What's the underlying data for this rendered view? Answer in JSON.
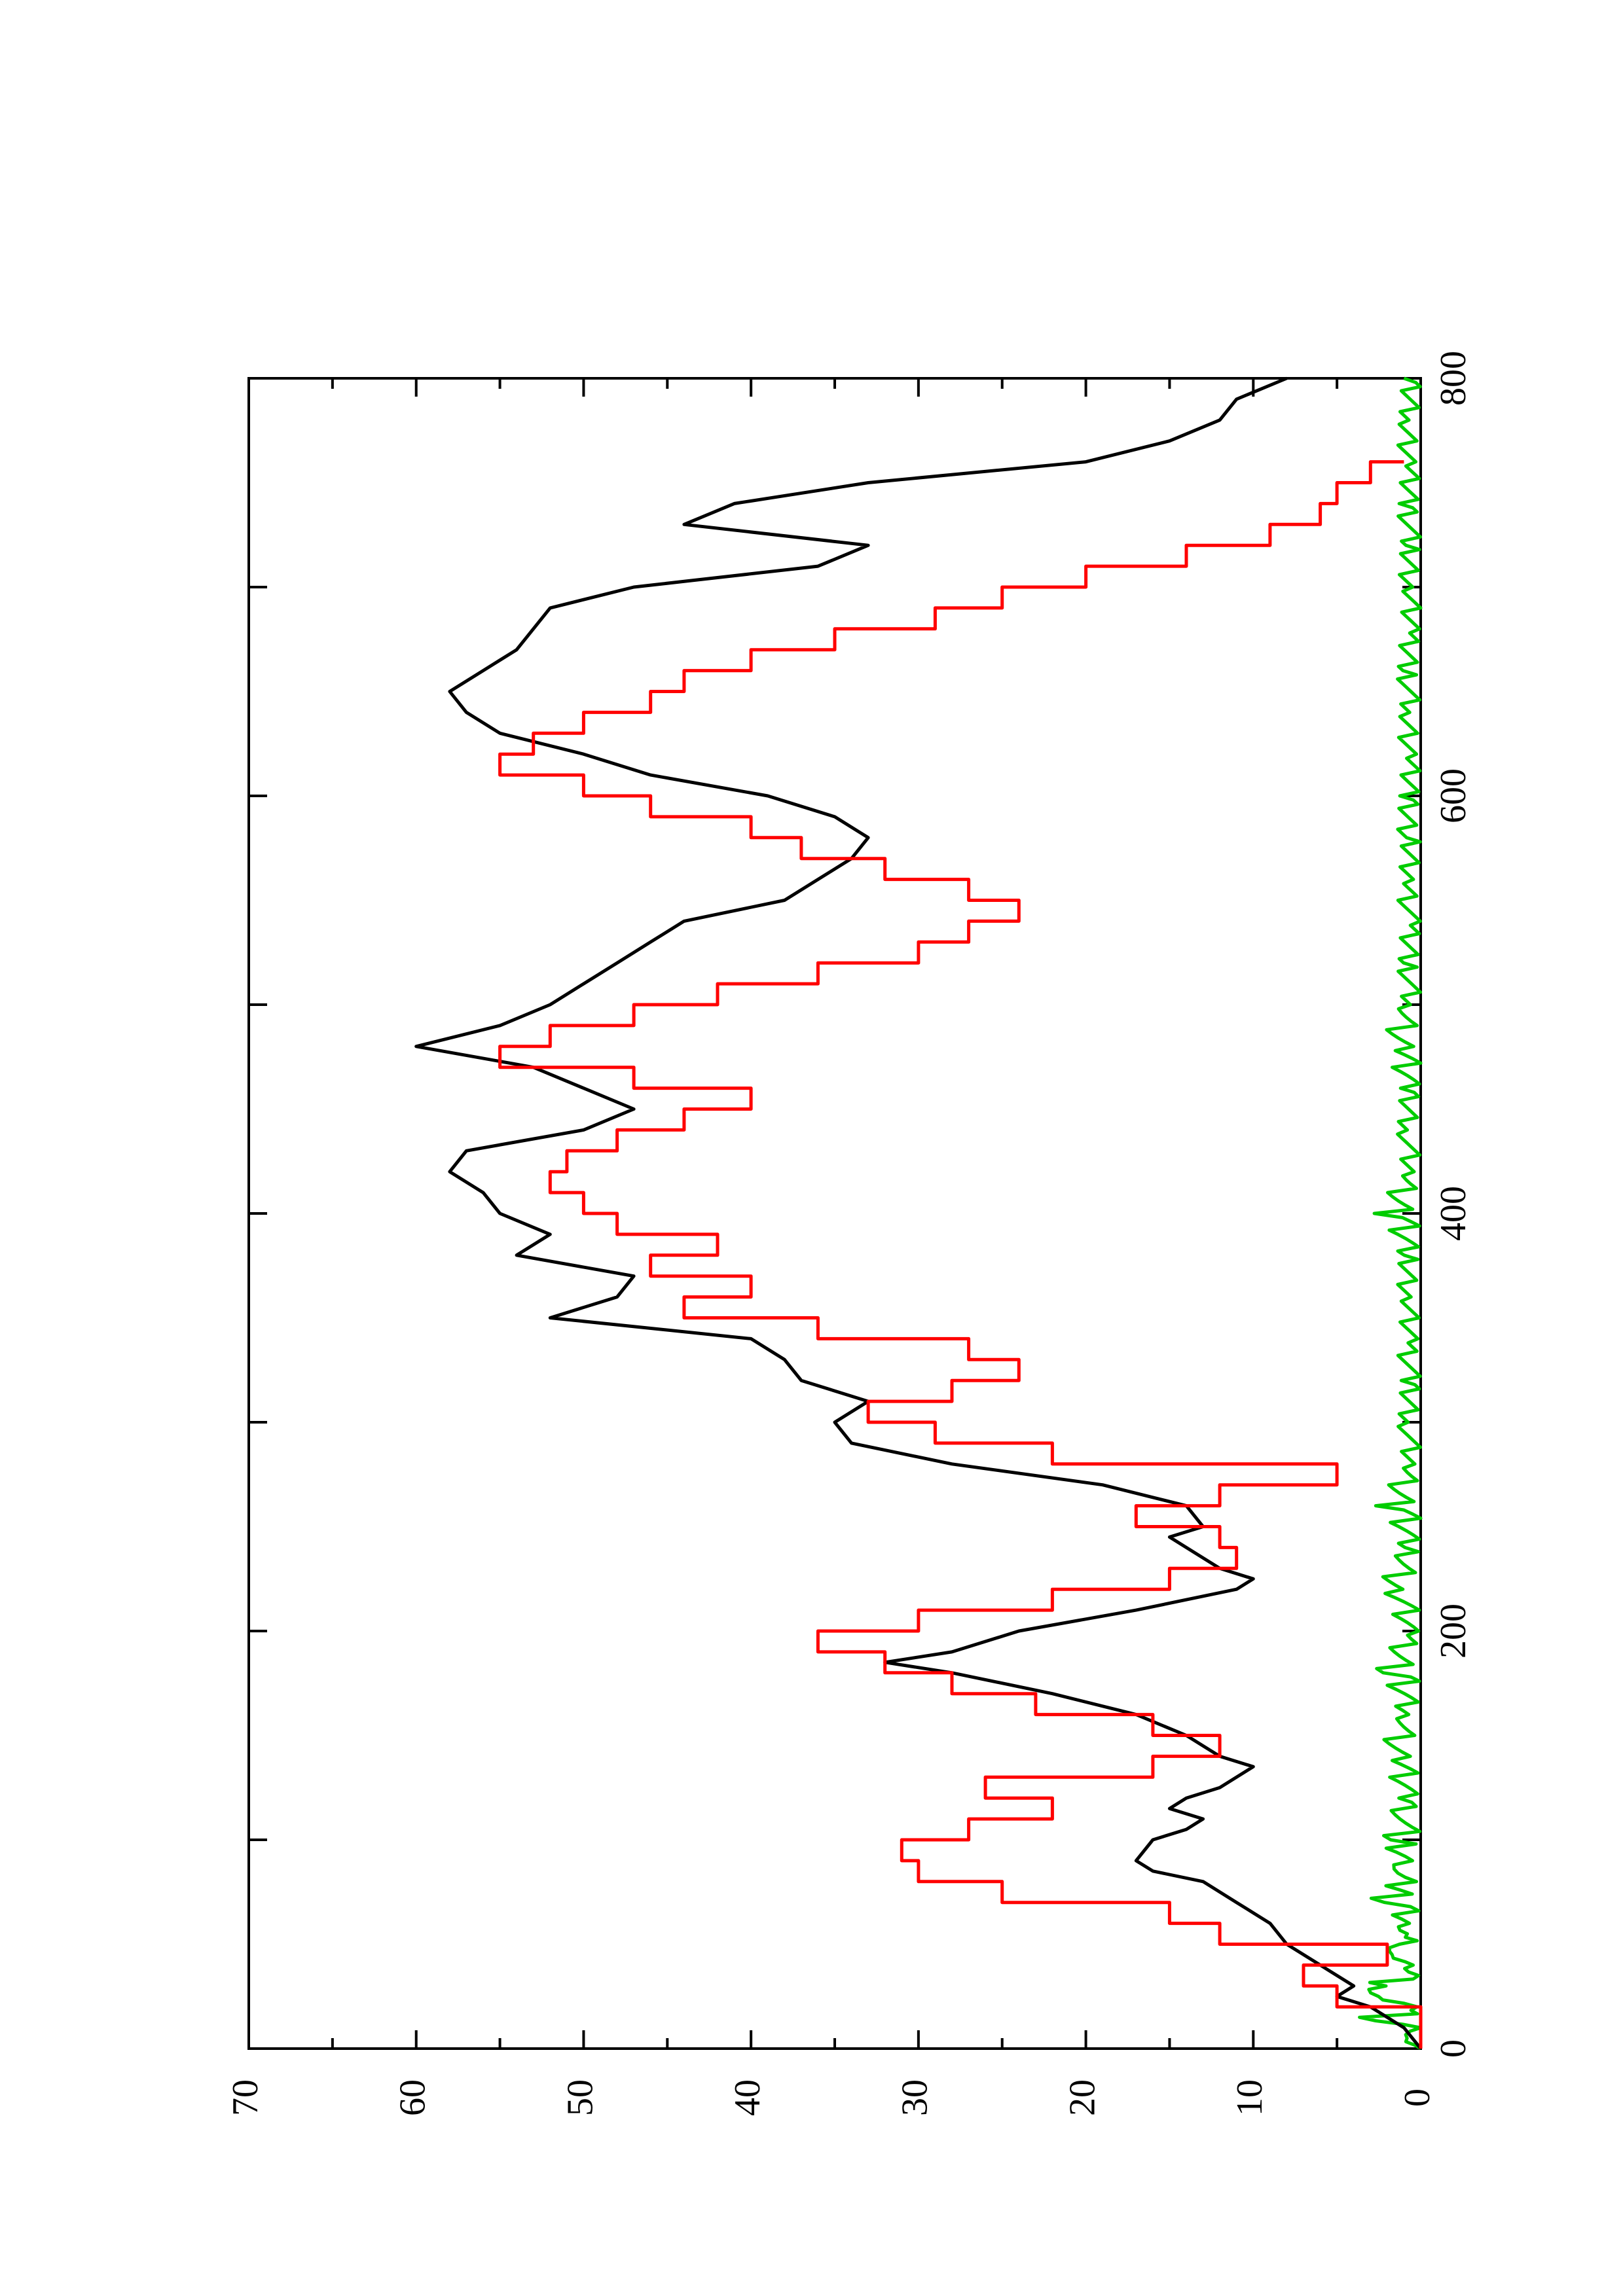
{
  "chart_data": {
    "type": "line",
    "orientation": "rotated 90 degrees counter-clockwise (x axis runs bottom-to-top, y axis runs left-to-right)",
    "title": "",
    "xlabel": "",
    "ylabel": "",
    "xlim": [
      0,
      800
    ],
    "ylim": [
      0,
      70
    ],
    "x_ticks": [
      "0",
      "200",
      "400",
      "600",
      "800"
    ],
    "y_ticks": [
      "0",
      "10",
      "20",
      "30",
      "40",
      "50",
      "60",
      "70"
    ],
    "grid": false,
    "legend": "none",
    "series": [
      {
        "color": "#000000",
        "style": "line",
        "points": [
          [
            0,
            0
          ],
          [
            10,
            1
          ],
          [
            20,
            3
          ],
          [
            25,
            5
          ],
          [
            30,
            4
          ],
          [
            40,
            6
          ],
          [
            50,
            8
          ],
          [
            60,
            9
          ],
          [
            70,
            11
          ],
          [
            80,
            13
          ],
          [
            85,
            16
          ],
          [
            90,
            17
          ],
          [
            100,
            16
          ],
          [
            105,
            14
          ],
          [
            110,
            13
          ],
          [
            115,
            15
          ],
          [
            120,
            14
          ],
          [
            125,
            12
          ],
          [
            130,
            11
          ],
          [
            135,
            10
          ],
          [
            140,
            12
          ],
          [
            150,
            14
          ],
          [
            160,
            17
          ],
          [
            170,
            22
          ],
          [
            180,
            28
          ],
          [
            185,
            32
          ],
          [
            190,
            28
          ],
          [
            200,
            24
          ],
          [
            210,
            17
          ],
          [
            220,
            11
          ],
          [
            225,
            10
          ],
          [
            230,
            12
          ],
          [
            240,
            14
          ],
          [
            245,
            15
          ],
          [
            250,
            13
          ],
          [
            260,
            14
          ],
          [
            270,
            19
          ],
          [
            280,
            28
          ],
          [
            290,
            34
          ],
          [
            300,
            35
          ],
          [
            310,
            33
          ],
          [
            320,
            37
          ],
          [
            330,
            38
          ],
          [
            340,
            40
          ],
          [
            350,
            52
          ],
          [
            360,
            48
          ],
          [
            370,
            47
          ],
          [
            380,
            54
          ],
          [
            390,
            52
          ],
          [
            400,
            55
          ],
          [
            410,
            56
          ],
          [
            420,
            58
          ],
          [
            430,
            57
          ],
          [
            440,
            50
          ],
          [
            450,
            47
          ],
          [
            460,
            50
          ],
          [
            470,
            53
          ],
          [
            480,
            60
          ],
          [
            490,
            55
          ],
          [
            500,
            52
          ],
          [
            510,
            50
          ],
          [
            520,
            48
          ],
          [
            530,
            46
          ],
          [
            540,
            44
          ],
          [
            550,
            38
          ],
          [
            560,
            36
          ],
          [
            570,
            34
          ],
          [
            580,
            33
          ],
          [
            590,
            35
          ],
          [
            600,
            39
          ],
          [
            610,
            46
          ],
          [
            620,
            50
          ],
          [
            630,
            55
          ],
          [
            640,
            57
          ],
          [
            650,
            58
          ],
          [
            660,
            56
          ],
          [
            670,
            54
          ],
          [
            680,
            53
          ],
          [
            690,
            52
          ],
          [
            700,
            47
          ],
          [
            710,
            36
          ],
          [
            720,
            33
          ],
          [
            730,
            44
          ],
          [
            740,
            41
          ],
          [
            750,
            33
          ],
          [
            760,
            20
          ],
          [
            770,
            15
          ],
          [
            780,
            12
          ],
          [
            790,
            11
          ],
          [
            800,
            8
          ]
        ]
      },
      {
        "color": "#ff0000",
        "style": "step",
        "points": [
          [
            0,
            0
          ],
          [
            20,
            5
          ],
          [
            30,
            7
          ],
          [
            40,
            2
          ],
          [
            50,
            12
          ],
          [
            60,
            15
          ],
          [
            70,
            25
          ],
          [
            80,
            30
          ],
          [
            90,
            31
          ],
          [
            100,
            27
          ],
          [
            110,
            22
          ],
          [
            120,
            26
          ],
          [
            130,
            16
          ],
          [
            140,
            12
          ],
          [
            150,
            16
          ],
          [
            160,
            23
          ],
          [
            170,
            28
          ],
          [
            180,
            32
          ],
          [
            190,
            36
          ],
          [
            200,
            30
          ],
          [
            210,
            22
          ],
          [
            220,
            15
          ],
          [
            230,
            11
          ],
          [
            240,
            12
          ],
          [
            250,
            17
          ],
          [
            260,
            12
          ],
          [
            270,
            5
          ],
          [
            280,
            22
          ],
          [
            290,
            29
          ],
          [
            300,
            33
          ],
          [
            310,
            28
          ],
          [
            320,
            24
          ],
          [
            330,
            27
          ],
          [
            340,
            36
          ],
          [
            350,
            44
          ],
          [
            360,
            40
          ],
          [
            370,
            46
          ],
          [
            380,
            42
          ],
          [
            390,
            48
          ],
          [
            400,
            50
          ],
          [
            410,
            52
          ],
          [
            420,
            51
          ],
          [
            430,
            48
          ],
          [
            440,
            44
          ],
          [
            450,
            40
          ],
          [
            460,
            47
          ],
          [
            470,
            55
          ],
          [
            480,
            52
          ],
          [
            490,
            47
          ],
          [
            500,
            42
          ],
          [
            510,
            36
          ],
          [
            520,
            30
          ],
          [
            530,
            27
          ],
          [
            540,
            24
          ],
          [
            550,
            27
          ],
          [
            560,
            32
          ],
          [
            570,
            37
          ],
          [
            580,
            40
          ],
          [
            590,
            46
          ],
          [
            600,
            50
          ],
          [
            610,
            55
          ],
          [
            620,
            53
          ],
          [
            630,
            50
          ],
          [
            640,
            46
          ],
          [
            650,
            44
          ],
          [
            660,
            40
          ],
          [
            670,
            35
          ],
          [
            680,
            29
          ],
          [
            690,
            25
          ],
          [
            700,
            20
          ],
          [
            710,
            14
          ],
          [
            720,
            9
          ],
          [
            730,
            6
          ],
          [
            740,
            5
          ],
          [
            750,
            3
          ],
          [
            760,
            1
          ]
        ]
      },
      {
        "color": "#00cc00",
        "style": "noise",
        "points": [
          [
            0,
            1
          ],
          [
            5,
            2
          ],
          [
            10,
            0
          ],
          [
            15,
            3
          ],
          [
            20,
            1
          ],
          [
            25,
            4
          ],
          [
            30,
            2
          ],
          [
            35,
            3
          ],
          [
            40,
            1
          ],
          [
            45,
            2
          ],
          [
            50,
            1
          ],
          [
            55,
            3
          ],
          [
            60,
            1
          ],
          [
            70,
            2
          ],
          [
            80,
            3
          ],
          [
            90,
            1
          ],
          [
            100,
            2
          ],
          [
            120,
            1
          ],
          [
            140,
            2
          ],
          [
            160,
            1
          ],
          [
            180,
            2
          ],
          [
            200,
            1
          ],
          [
            220,
            2
          ],
          [
            240,
            1
          ],
          [
            260,
            2
          ],
          [
            280,
            1
          ],
          [
            300,
            1
          ],
          [
            320,
            1
          ],
          [
            340,
            1
          ],
          [
            360,
            1
          ],
          [
            380,
            1
          ],
          [
            400,
            2
          ],
          [
            420,
            1
          ],
          [
            440,
            1
          ],
          [
            460,
            1
          ],
          [
            480,
            2
          ],
          [
            500,
            1
          ],
          [
            520,
            1
          ],
          [
            540,
            1
          ],
          [
            560,
            1
          ],
          [
            580,
            1
          ],
          [
            600,
            1
          ],
          [
            620,
            1
          ],
          [
            640,
            1
          ],
          [
            660,
            1
          ],
          [
            680,
            1
          ],
          [
            700,
            1
          ],
          [
            720,
            1
          ],
          [
            740,
            1
          ],
          [
            760,
            1
          ],
          [
            780,
            1
          ],
          [
            800,
            1
          ]
        ]
      }
    ]
  }
}
